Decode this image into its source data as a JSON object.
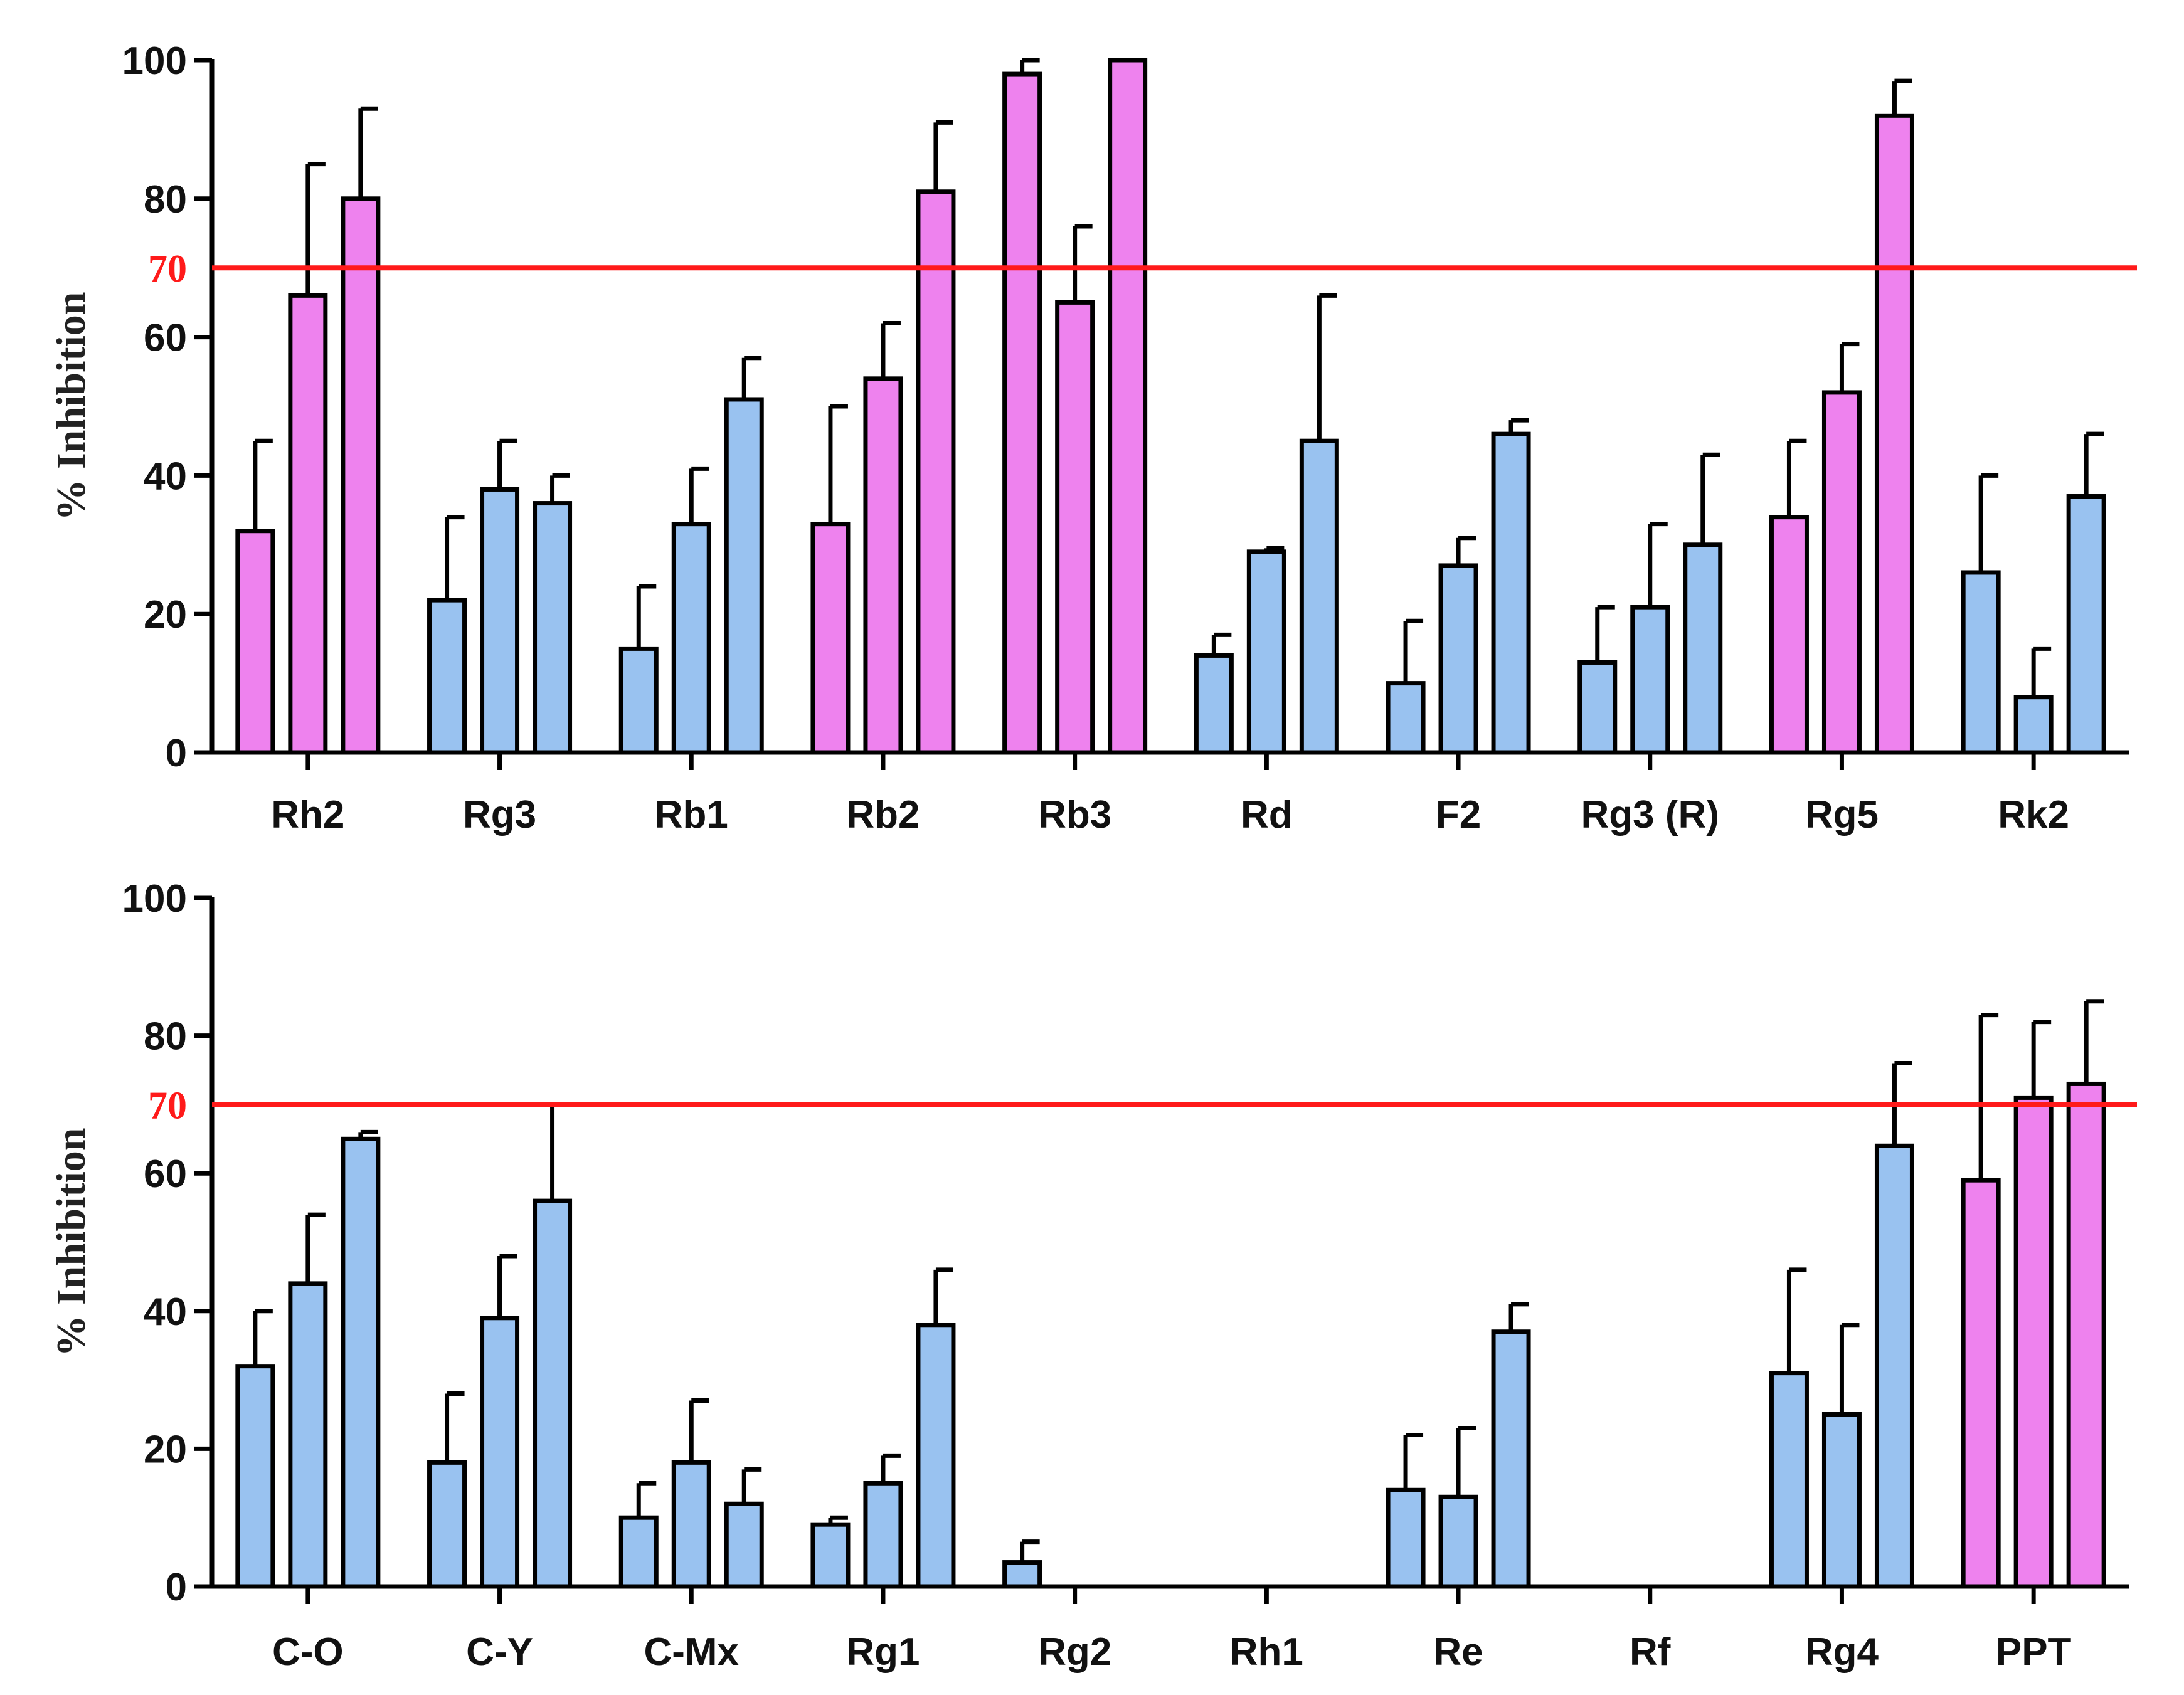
{
  "colors": {
    "highlight": "#EE82EE",
    "normal": "#99C2F0",
    "threshold": "#FF1A1A",
    "axis": "#000000"
  },
  "chart_data": [
    {
      "type": "bar",
      "ylabel": "% Inhibition",
      "ylim": [
        0,
        100
      ],
      "yticks": [
        0,
        20,
        40,
        60,
        80,
        100
      ],
      "threshold": {
        "value": 70,
        "label": "70"
      },
      "groups": [
        {
          "label": "Rh2",
          "values": [
            32,
            66,
            80
          ],
          "errors": [
            13,
            19,
            13
          ],
          "highlight": [
            true,
            true,
            true
          ]
        },
        {
          "label": "Rg3",
          "values": [
            22,
            38,
            36
          ],
          "errors": [
            12,
            7,
            4
          ],
          "highlight": [
            false,
            false,
            false
          ]
        },
        {
          "label": "Rb1",
          "values": [
            15,
            33,
            51
          ],
          "errors": [
            9,
            8,
            6
          ],
          "highlight": [
            false,
            false,
            false
          ]
        },
        {
          "label": "Rb2",
          "values": [
            33,
            54,
            81
          ],
          "errors": [
            17,
            8,
            10
          ],
          "highlight": [
            true,
            true,
            true
          ]
        },
        {
          "label": "Rb3",
          "values": [
            98,
            65,
            100
          ],
          "errors": [
            2,
            11,
            0
          ],
          "highlight": [
            true,
            true,
            true
          ]
        },
        {
          "label": "Rd",
          "values": [
            14,
            29,
            45
          ],
          "errors": [
            3,
            0.5,
            21
          ],
          "highlight": [
            false,
            false,
            false
          ]
        },
        {
          "label": "F2",
          "values": [
            10,
            27,
            46
          ],
          "errors": [
            9,
            4,
            2
          ],
          "highlight": [
            false,
            false,
            false
          ]
        },
        {
          "label": "Rg3 (R)",
          "values": [
            13,
            21,
            30
          ],
          "errors": [
            8,
            12,
            13
          ],
          "highlight": [
            false,
            false,
            false
          ]
        },
        {
          "label": "Rg5",
          "values": [
            34,
            52,
            92
          ],
          "errors": [
            11,
            7,
            5
          ],
          "highlight": [
            true,
            true,
            true
          ]
        },
        {
          "label": "Rk2",
          "values": [
            26,
            8,
            37
          ],
          "errors": [
            14,
            7,
            9
          ],
          "highlight": [
            false,
            false,
            false
          ]
        }
      ]
    },
    {
      "type": "bar",
      "ylabel": "% Inhibition",
      "ylim": [
        0,
        100
      ],
      "yticks": [
        0,
        20,
        40,
        60,
        80,
        100
      ],
      "threshold": {
        "value": 70,
        "label": "70"
      },
      "groups": [
        {
          "label": "C-O",
          "values": [
            32,
            44,
            65
          ],
          "errors": [
            8,
            10,
            1
          ],
          "highlight": [
            false,
            false,
            false
          ]
        },
        {
          "label": "C-Y",
          "values": [
            18,
            39,
            56
          ],
          "errors": [
            10,
            9,
            14
          ],
          "highlight": [
            false,
            false,
            false
          ]
        },
        {
          "label": "C-Mx",
          "values": [
            10,
            18,
            12
          ],
          "errors": [
            5,
            9,
            5
          ],
          "highlight": [
            false,
            false,
            false
          ]
        },
        {
          "label": "Rg1",
          "values": [
            9,
            15,
            38
          ],
          "errors": [
            1,
            4,
            8
          ],
          "highlight": [
            false,
            false,
            false
          ]
        },
        {
          "label": "Rg2",
          "values": [
            3.5,
            0,
            0
          ],
          "errors": [
            3,
            0,
            0
          ],
          "highlight": [
            false,
            false,
            false
          ]
        },
        {
          "label": "Rh1",
          "values": [
            0,
            0,
            0
          ],
          "errors": [
            0,
            0,
            0
          ],
          "highlight": [
            false,
            false,
            false
          ]
        },
        {
          "label": "Re",
          "values": [
            14,
            13,
            37
          ],
          "errors": [
            8,
            10,
            4
          ],
          "highlight": [
            false,
            false,
            false
          ]
        },
        {
          "label": "Rf",
          "values": [
            0,
            0,
            0
          ],
          "errors": [
            0,
            0,
            0
          ],
          "highlight": [
            false,
            false,
            false
          ]
        },
        {
          "label": "Rg4",
          "values": [
            31,
            25,
            64
          ],
          "errors": [
            15,
            13,
            12
          ],
          "highlight": [
            false,
            false,
            false
          ]
        },
        {
          "label": "PPT",
          "values": [
            59,
            71,
            73
          ],
          "errors": [
            24,
            11,
            12
          ],
          "highlight": [
            true,
            true,
            true
          ]
        }
      ]
    }
  ]
}
